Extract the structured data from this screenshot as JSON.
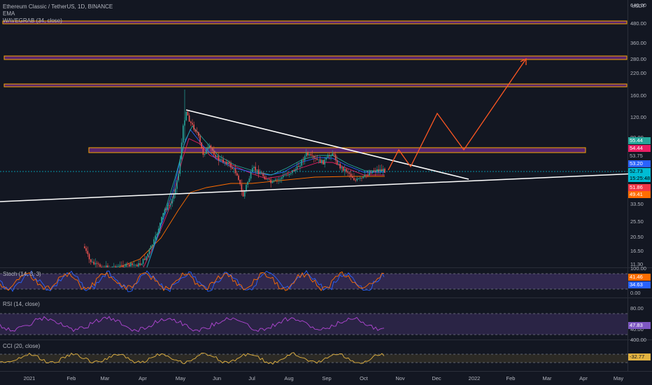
{
  "header": {
    "symbol_line": "Ethereum Classic / TetherUS, 1D, BINANCE",
    "indicator_1": "EMA",
    "indicator_2": "WAVEGRAB (34, close)"
  },
  "price_axis": {
    "unit": "USDT",
    "labels": [
      "640.00",
      "480.00",
      "360.00",
      "280.00",
      "220.00",
      "160.00",
      "120.00",
      "80.00",
      "33.50",
      "25.50",
      "20.50",
      "16.50",
      "11.30"
    ]
  },
  "badges": [
    {
      "text": "55.44",
      "bg": "#26a69a",
      "fg": "#ffffff"
    },
    {
      "text": "54.44",
      "bg": "#e91e63",
      "fg": "#ffffff"
    },
    {
      "text": "53.75",
      "bg": "#131722",
      "fg": "#b2b5be"
    },
    {
      "text": "53.20",
      "bg": "#2962ff",
      "fg": "#ffffff"
    },
    {
      "text": "52.73",
      "bg": "#00bcd4",
      "fg": "#000000"
    },
    {
      "text": "15:25:48",
      "bg": "#00bcd4",
      "fg": "#000000"
    },
    {
      "text": "51.86",
      "bg": "#f23645",
      "fg": "#ffffff"
    },
    {
      "text": "49.41",
      "bg": "#ff6d00",
      "fg": "#ffffff"
    }
  ],
  "panes": {
    "stoch": {
      "title": "Stoch (14, 3, 3)",
      "axis": [
        "100.00",
        "0.00"
      ],
      "values": [
        {
          "text": "41.46",
          "bg": "#ff6d00",
          "fg": "#ffffff"
        },
        {
          "text": "34.63",
          "bg": "#2962ff",
          "fg": "#ffffff"
        }
      ]
    },
    "rsi": {
      "title": "RSI (14, close)",
      "axis": [
        "80.00",
        "40.00"
      ],
      "values": [
        {
          "text": "47.83",
          "bg": "#7e57c2",
          "fg": "#ffffff"
        }
      ]
    },
    "cci": {
      "title": "CCI (20, close)",
      "axis": [
        "400.00"
      ],
      "values": [
        {
          "text": "-32.77",
          "bg": "#e3b341",
          "fg": "#131722"
        }
      ]
    }
  },
  "time_axis": [
    "2021",
    "Feb",
    "Mar",
    "Apr",
    "May",
    "Jun",
    "Jul",
    "Aug",
    "Sep",
    "Oct",
    "Nov",
    "Dec",
    "2022",
    "Feb",
    "Mar",
    "Apr",
    "May"
  ],
  "colors": {
    "background": "#131722",
    "up": "#26a69a",
    "down": "#ef5350",
    "zone_border": "#f7a600",
    "zone_fill": "#e040fb",
    "projection": "#ff5722",
    "trendline": "#ffffff"
  }
}
